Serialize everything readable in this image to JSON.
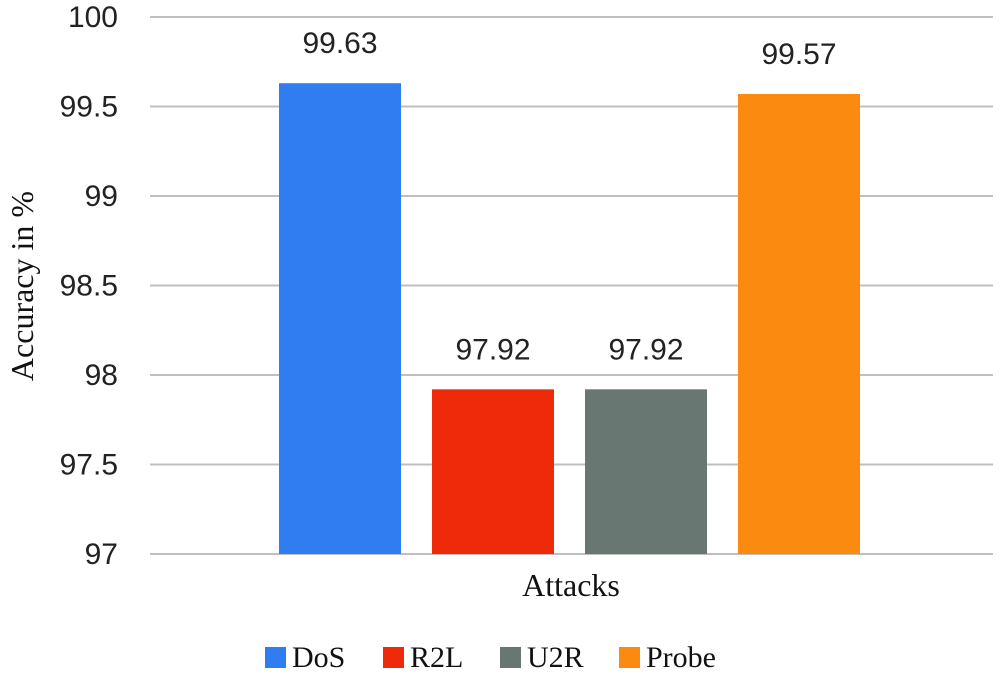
{
  "chart_data": {
    "type": "bar",
    "title": "",
    "xlabel": "Attacks",
    "ylabel": "Accuracy in %",
    "ylim": [
      97,
      100
    ],
    "yticks": [
      "97",
      "97.5",
      "98",
      "98.5",
      "99",
      "99.5",
      "100"
    ],
    "grid": true,
    "legend_position": "bottom",
    "series": [
      {
        "name": "DoS",
        "value": 99.63,
        "label": "99.63",
        "color": "#2f7df0"
      },
      {
        "name": "R2L",
        "value": 97.92,
        "label": "97.92",
        "color": "#ee2a0a"
      },
      {
        "name": "U2R",
        "value": 97.92,
        "label": "97.92",
        "color": "#687772"
      },
      {
        "name": "Probe",
        "value": 99.57,
        "label": "99.57",
        "color": "#fb8b10"
      }
    ]
  }
}
